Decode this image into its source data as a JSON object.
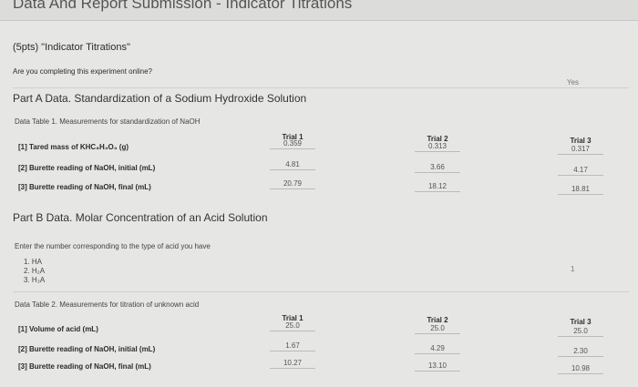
{
  "header": {
    "title": "Data And Report Submission - Indicator Titrations"
  },
  "section": {
    "title": "(5pts) \"Indicator Titrations\"",
    "question": "Are you completing this experiment online?",
    "answer": "Yes",
    "part_a": {
      "title": "Part A Data. Standardization of a Sodium Hydroxide Solution",
      "table": {
        "caption": "Data Table 1. Measurements for standardization of NaOH",
        "columns": [
          "Trial 1",
          "Trial 2",
          "Trial 3"
        ],
        "rows": [
          {
            "label": "[1] Tared mass of KHC₈H₄O₄ (g)",
            "values": [
              "0.359",
              "0.313",
              "0.317"
            ]
          },
          {
            "label": "[2] Burette reading of NaOH, initial (mL)",
            "values": [
              "4.81",
              "3.66",
              "4.17"
            ]
          },
          {
            "label": "[3] Burette reading of NaOH, final (mL)",
            "values": [
              "20.79",
              "18.12",
              "18.81"
            ]
          }
        ]
      }
    },
    "part_b": {
      "title": "Part B Data. Molar Concentration of an Acid Solution",
      "prompt": "Enter the number corresponding to the type of acid you have",
      "options": [
        "1. HA",
        "2. H₂A",
        "3. H₃A"
      ],
      "answer": "1",
      "table": {
        "caption": "Data Table 2. Measurements for titration of unknown acid",
        "columns": [
          "Trial 1",
          "Trial 2",
          "Trial 3"
        ],
        "rows": [
          {
            "label": "[1] Volume of acid (mL)",
            "values": [
              "25.0",
              "25.0",
              "25.0"
            ]
          },
          {
            "label": "[2] Burette reading of NaOH, initial (mL)",
            "values": [
              "1.67",
              "4.29",
              "2.30"
            ]
          },
          {
            "label": "[3] Burette reading of NaOH, final (mL)",
            "values": [
              "10.27",
              "13.10",
              "10.98"
            ]
          }
        ]
      }
    }
  }
}
